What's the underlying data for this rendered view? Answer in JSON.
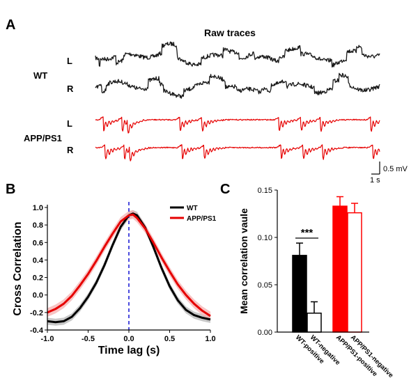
{
  "panel_a": {
    "letter": "A",
    "title": "Raw traces",
    "groups": [
      {
        "label": "WT",
        "color": "#1a1a1a",
        "channels": [
          "L",
          "R"
        ]
      },
      {
        "label": "APP/PS1",
        "color": "#e60000",
        "channels": [
          "L",
          "R"
        ]
      }
    ],
    "scalebar": {
      "v_label": "0.5 mV",
      "h_label": "1 s"
    }
  },
  "chart_data": [
    {
      "panel": "B",
      "type": "line",
      "title": "",
      "xlabel": "Time lag (s)",
      "ylabel": "Cross Correlation",
      "xlim": [
        -1.0,
        1.0
      ],
      "ylim": [
        -0.4,
        1.0
      ],
      "xticks": [
        "-1.0",
        "-0.5",
        "0.0",
        "0.5",
        "1.0"
      ],
      "yticks": [
        "-0.4",
        "-0.2",
        "0.0",
        "0.2",
        "0.4",
        "0.6",
        "0.8",
        "1.0"
      ],
      "legend": "top-right",
      "reference_line": {
        "x": 0.0,
        "style": "dashed",
        "color": "#1f1fd6"
      },
      "series": [
        {
          "name": "WT",
          "color": "#000000",
          "band_color": "#b5b5b5",
          "x": [
            -1.0,
            -0.9,
            -0.8,
            -0.7,
            -0.6,
            -0.5,
            -0.4,
            -0.3,
            -0.2,
            -0.1,
            0.0,
            0.05,
            0.1,
            0.2,
            0.3,
            0.4,
            0.5,
            0.6,
            0.7,
            0.8,
            0.9,
            1.0
          ],
          "y": [
            -0.3,
            -0.31,
            -0.3,
            -0.25,
            -0.15,
            -0.02,
            0.14,
            0.34,
            0.57,
            0.78,
            0.91,
            0.93,
            0.91,
            0.77,
            0.55,
            0.31,
            0.1,
            -0.06,
            -0.17,
            -0.23,
            -0.26,
            -0.28
          ],
          "band": 0.04
        },
        {
          "name": "APP/PS1",
          "color": "#e60000",
          "band_color": "#f5b0b0",
          "x": [
            -1.0,
            -0.9,
            -0.8,
            -0.7,
            -0.6,
            -0.5,
            -0.4,
            -0.3,
            -0.2,
            -0.1,
            0.0,
            0.05,
            0.1,
            0.2,
            0.3,
            0.4,
            0.5,
            0.6,
            0.7,
            0.8,
            0.9,
            1.0
          ],
          "y": [
            -0.2,
            -0.16,
            -0.1,
            -0.01,
            0.11,
            0.24,
            0.39,
            0.55,
            0.7,
            0.84,
            0.91,
            0.92,
            0.88,
            0.76,
            0.6,
            0.43,
            0.27,
            0.12,
            0.0,
            -0.1,
            -0.18,
            -0.24
          ],
          "band": 0.05
        }
      ]
    },
    {
      "panel": "C",
      "type": "bar",
      "title": "",
      "xlabel": "",
      "ylabel": "Mean correlation vaule",
      "ylim": [
        0.0,
        0.15
      ],
      "yticks": [
        "0.00",
        "0.05",
        "0.10",
        "0.15"
      ],
      "categories": [
        "WT-positive",
        "WT-negative",
        "APP/PS1-positive",
        "APP/PS1-negative"
      ],
      "values": [
        0.081,
        0.02,
        0.133,
        0.126
      ],
      "errors": [
        0.013,
        0.012,
        0.01,
        0.01
      ],
      "fills": [
        "#000000",
        "#ffffff",
        "#ff0000",
        "#ffffff"
      ],
      "strokes": [
        "#000000",
        "#000000",
        "#ff0000",
        "#ff0000"
      ],
      "significance": {
        "label": "***",
        "between": [
          0,
          1
        ]
      }
    }
  ]
}
